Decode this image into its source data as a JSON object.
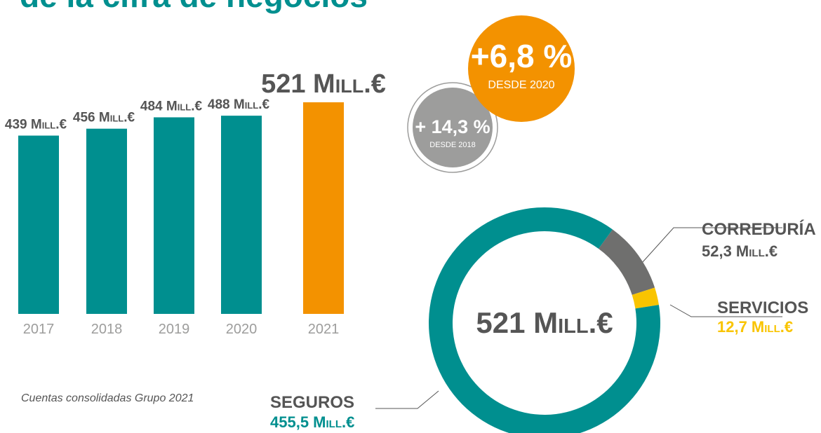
{
  "title": "de la cifra de negocios",
  "note": "Cuentas consolidadas Grupo 2021",
  "badges": [
    {
      "value": "+6,8 %",
      "label": "DESDE 2020"
    },
    {
      "value": "+ 14,3 %",
      "label": "DESDE 2018"
    }
  ],
  "chart_data": [
    {
      "type": "bar",
      "categories": [
        "2017",
        "2018",
        "2019",
        "2020",
        "2021"
      ],
      "values": [
        439,
        456,
        484,
        488,
        521
      ],
      "value_labels": [
        "439 Mill.€",
        "456 Mill.€",
        "484 Mill.€",
        "488 Mill.€",
        "521 Mill.€"
      ],
      "colors": [
        "#008f8f",
        "#008f8f",
        "#008f8f",
        "#008f8f",
        "#f39200"
      ]
    },
    {
      "type": "donut",
      "center_label": "521 Mill.€",
      "categories": [
        "CORREDURÍA",
        "SERVICIOS",
        "SEGUROS"
      ],
      "values": [
        52.3,
        12.7,
        455.5
      ],
      "value_labels": [
        "52,3 Mill.€",
        "12,7 Mill.€",
        "455,5 Mill.€"
      ],
      "colors": [
        "#6f6f6e",
        "#f9c400",
        "#008f8f"
      ]
    }
  ]
}
